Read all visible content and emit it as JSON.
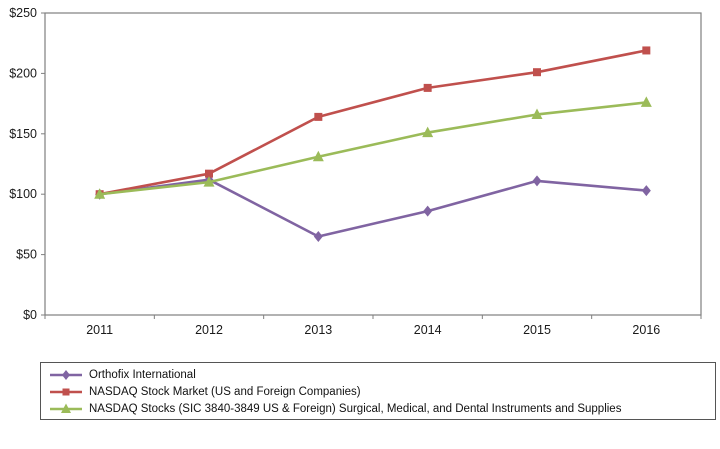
{
  "chart_data": {
    "type": "line",
    "x": [
      2011,
      2012,
      2013,
      2014,
      2015,
      2016
    ],
    "x_tick_labels": [
      "2011",
      "2012",
      "2013",
      "2014",
      "2015",
      "2016"
    ],
    "y_ticks": [
      0,
      50,
      100,
      150,
      200,
      250
    ],
    "y_tick_labels": [
      "$0",
      "$50",
      "$100",
      "$150",
      "$200",
      "$250"
    ],
    "ylim": [
      0,
      250
    ],
    "grid": false,
    "legend_position": "bottom",
    "title": "",
    "xlabel": "",
    "ylabel": "",
    "axis_color": "#7f7f7f",
    "text_color": "#1a1a1a",
    "series": [
      {
        "name": "Orthofix International",
        "color": "#8064A2",
        "marker": "diamond",
        "values": [
          100,
          112,
          65,
          86,
          111,
          103
        ]
      },
      {
        "name": "NASDAQ Stock Market (US and Foreign Companies)",
        "color": "#C0504D",
        "marker": "square",
        "values": [
          100,
          117,
          164,
          188,
          201,
          219
        ]
      },
      {
        "name": "NASDAQ Stocks (SIC 3840-3849 US & Foreign) Surgical, Medical, and Dental Instruments and Supplies",
        "color": "#9BBB59",
        "marker": "triangle",
        "values": [
          100,
          110,
          131,
          151,
          166,
          176
        ]
      }
    ]
  }
}
